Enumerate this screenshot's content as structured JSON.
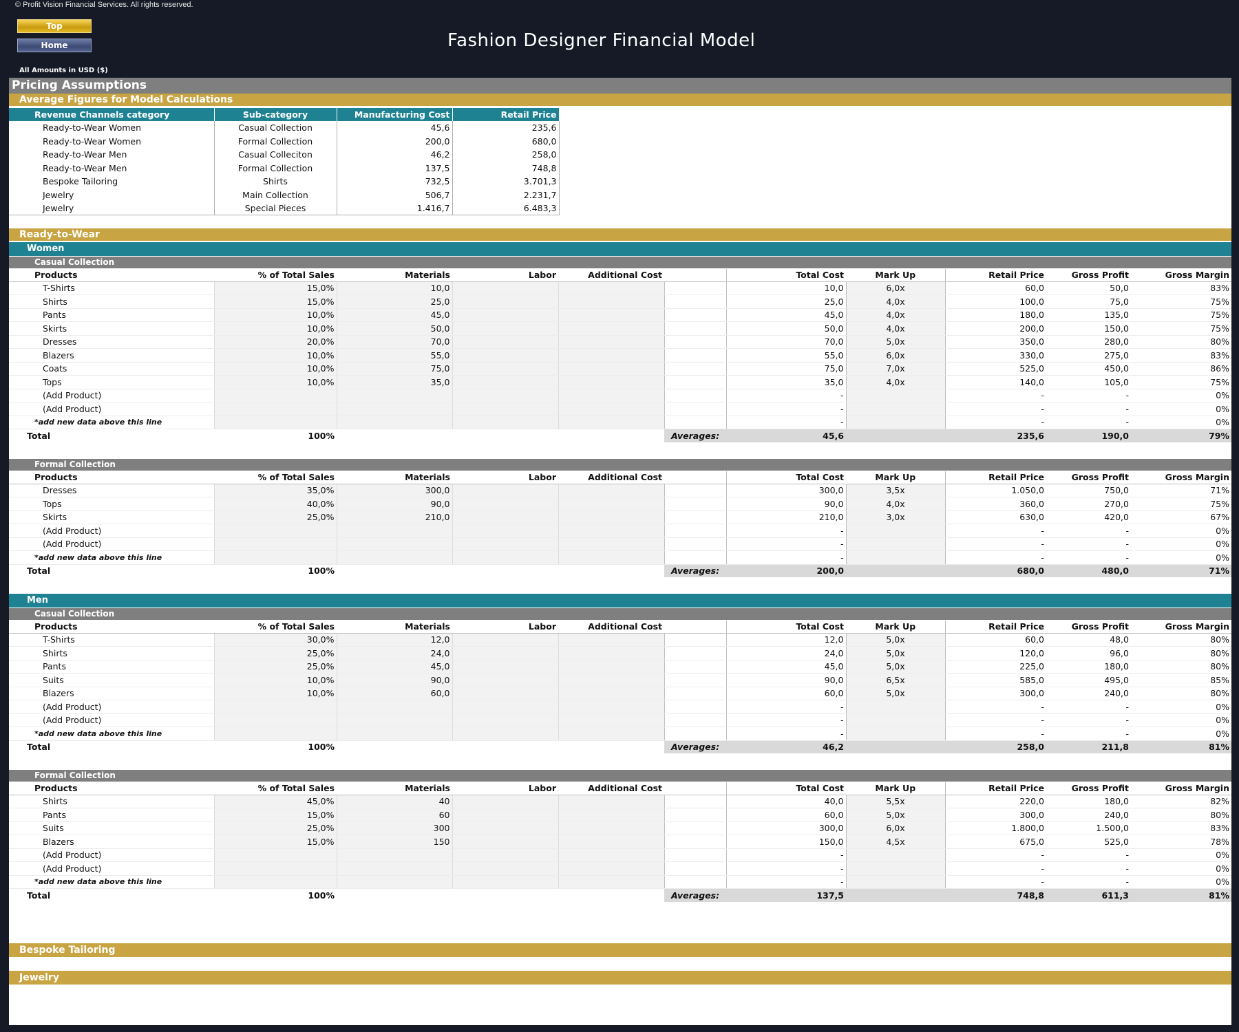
{
  "header": {
    "copyright": "© Profit Vision Financial Services. All rights reserved.",
    "top_label": "Top",
    "home_label": "Home",
    "title": "Fashion Designer Financial Model",
    "amounts_note": "All Amounts in  USD ($)"
  },
  "colors": {
    "gold": "#c8a443",
    "teal": "#1f8293",
    "grey": "#7f7f7f",
    "input_blue": "#1a1e9c",
    "dark_bg": "#151a26"
  },
  "pricing": {
    "section_title": "Pricing Assumptions",
    "subtitle": "Average Figures for Model Calculations",
    "headers": [
      "Revenue Channels category",
      "Sub-category",
      "Manufacturing Cost",
      "Retail Price"
    ],
    "rows": [
      [
        "Ready-to-Wear Women",
        "Casual Collection",
        "45,6",
        "235,6"
      ],
      [
        "Ready-to-Wear Women",
        "Formal Collection",
        "200,0",
        "680,0"
      ],
      [
        "Ready-to-Wear Men",
        "Casual Colleciton",
        "46,2",
        "258,0"
      ],
      [
        "Ready-to-Wear Men",
        "Formal Collection",
        "137,5",
        "748,8"
      ],
      [
        "Bespoke Tailoring",
        "Shirts",
        "732,5",
        "3.701,3"
      ],
      [
        "Jewelry",
        "Main Collection",
        "506,7",
        "2.231,7"
      ],
      [
        "Jewelry",
        "Special Pieces",
        "1.416,7",
        "6.483,3"
      ]
    ]
  },
  "rtw": {
    "title": "Ready-to-Wear",
    "women_label": "Women",
    "men_label": "Men"
  },
  "columns": [
    "Products",
    "% of Total Sales",
    "Materials",
    "Labor",
    "Additional Cost",
    "Total Cost",
    "Mark Up",
    "Retail Price",
    "Gross Profit",
    "Gross Margin"
  ],
  "labels": {
    "hint": "*add new data above this line",
    "total": "Total",
    "total_pct": "100%",
    "averages": "Averages:"
  },
  "women_casual": {
    "title": "Casual Collection",
    "rows": [
      [
        "T-Shirts",
        "15,0%",
        "10,0",
        "10,0",
        "6,0x",
        "60,0",
        "50,0",
        "83%"
      ],
      [
        "Shirts",
        "15,0%",
        "25,0",
        "25,0",
        "4,0x",
        "100,0",
        "75,0",
        "75%"
      ],
      [
        "Pants",
        "10,0%",
        "45,0",
        "45,0",
        "4,0x",
        "180,0",
        "135,0",
        "75%"
      ],
      [
        "Skirts",
        "10,0%",
        "50,0",
        "50,0",
        "4,0x",
        "200,0",
        "150,0",
        "75%"
      ],
      [
        "Dresses",
        "20,0%",
        "70,0",
        "70,0",
        "5,0x",
        "350,0",
        "280,0",
        "80%"
      ],
      [
        "Blazers",
        "10,0%",
        "55,0",
        "55,0",
        "6,0x",
        "330,0",
        "275,0",
        "83%"
      ],
      [
        "Coats",
        "10,0%",
        "75,0",
        "75,0",
        "7,0x",
        "525,0",
        "450,0",
        "86%"
      ],
      [
        "Tops",
        "10,0%",
        "35,0",
        "35,0",
        "4,0x",
        "140,0",
        "105,0",
        "75%"
      ],
      [
        "(Add Product)",
        "",
        "",
        "-",
        "",
        "-",
        "-",
        "0%"
      ],
      [
        "(Add Product)",
        "",
        "",
        "-",
        "",
        "-",
        "-",
        "0%"
      ]
    ],
    "hint_row": [
      "-",
      "-",
      "-",
      "0%"
    ],
    "averages": [
      "45,6",
      "235,6",
      "190,0",
      "79%"
    ]
  },
  "women_formal": {
    "title": "Formal Collection",
    "rows": [
      [
        "Dresses",
        "35,0%",
        "300,0",
        "300,0",
        "3,5x",
        "1.050,0",
        "750,0",
        "71%"
      ],
      [
        "Tops",
        "40,0%",
        "90,0",
        "90,0",
        "4,0x",
        "360,0",
        "270,0",
        "75%"
      ],
      [
        "Skirts",
        "25,0%",
        "210,0",
        "210,0",
        "3,0x",
        "630,0",
        "420,0",
        "67%"
      ],
      [
        "(Add Product)",
        "",
        "",
        "-",
        "",
        "-",
        "-",
        "0%"
      ],
      [
        "(Add Product)",
        "",
        "",
        "-",
        "",
        "-",
        "-",
        "0%"
      ]
    ],
    "hint_row": [
      "-",
      "-",
      "-",
      "0%"
    ],
    "averages": [
      "200,0",
      "680,0",
      "480,0",
      "71%"
    ]
  },
  "men_casual": {
    "title": "Casual Collection",
    "rows": [
      [
        "T-Shirts",
        "30,0%",
        "12,0",
        "12,0",
        "5,0x",
        "60,0",
        "48,0",
        "80%"
      ],
      [
        "Shirts",
        "25,0%",
        "24,0",
        "24,0",
        "5,0x",
        "120,0",
        "96,0",
        "80%"
      ],
      [
        "Pants",
        "25,0%",
        "45,0",
        "45,0",
        "5,0x",
        "225,0",
        "180,0",
        "80%"
      ],
      [
        "Suits",
        "10,0%",
        "90,0",
        "90,0",
        "6,5x",
        "585,0",
        "495,0",
        "85%"
      ],
      [
        "Blazers",
        "10,0%",
        "60,0",
        "60,0",
        "5,0x",
        "300,0",
        "240,0",
        "80%"
      ],
      [
        "(Add Product)",
        "",
        "",
        "-",
        "",
        "-",
        "-",
        "0%"
      ],
      [
        "(Add Product)",
        "",
        "",
        "-",
        "",
        "-",
        "-",
        "0%"
      ]
    ],
    "hint_row": [
      "-",
      "-",
      "-",
      "0%"
    ],
    "averages": [
      "46,2",
      "258,0",
      "211,8",
      "81%"
    ]
  },
  "men_formal": {
    "title": "Formal Collection",
    "rows": [
      [
        "Shirts",
        "45,0%",
        "40",
        "40,0",
        "5,5x",
        "220,0",
        "180,0",
        "82%"
      ],
      [
        "Pants",
        "15,0%",
        "60",
        "60,0",
        "5,0x",
        "300,0",
        "240,0",
        "80%"
      ],
      [
        "Suits",
        "25,0%",
        "300",
        "300,0",
        "6,0x",
        "1.800,0",
        "1.500,0",
        "83%"
      ],
      [
        "Blazers",
        "15,0%",
        "150",
        "150,0",
        "4,5x",
        "675,0",
        "525,0",
        "78%"
      ],
      [
        "(Add Product)",
        "",
        "",
        "-",
        "",
        "-",
        "-",
        "0%"
      ],
      [
        "(Add Product)",
        "",
        "",
        "-",
        "",
        "-",
        "-",
        "0%"
      ]
    ],
    "hint_row": [
      "-",
      "-",
      "-",
      "0%"
    ],
    "averages": [
      "137,5",
      "748,8",
      "611,3",
      "81%"
    ]
  },
  "bespoke": {
    "title": "Bespoke Tailoring"
  },
  "jewelry": {
    "title": "Jewelry"
  }
}
